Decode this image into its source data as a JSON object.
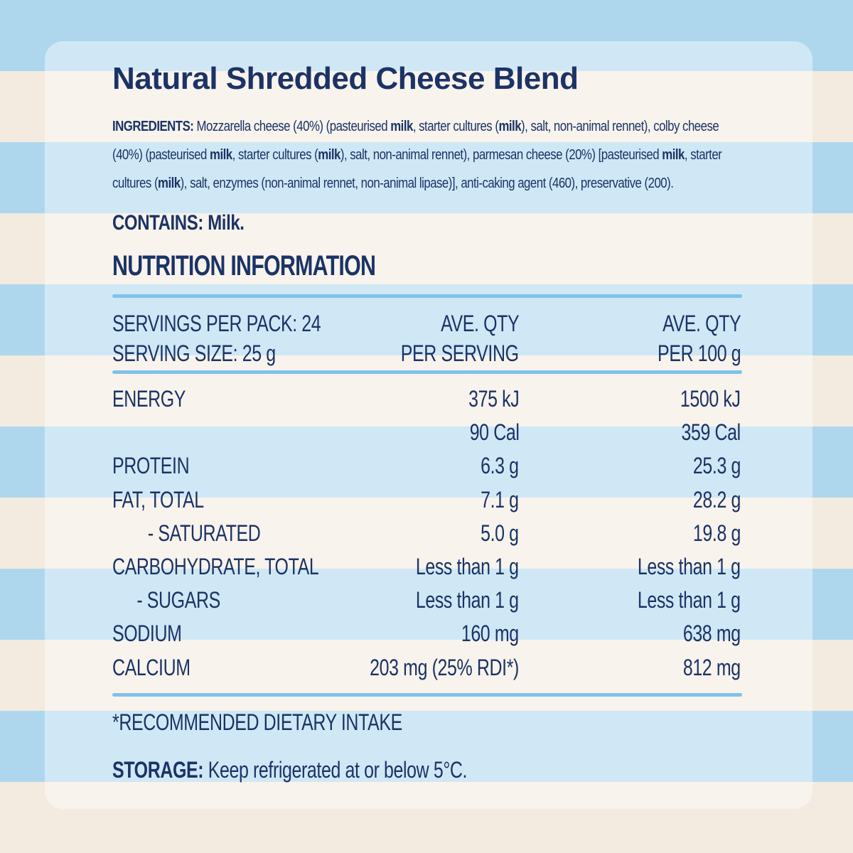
{
  "product": {
    "title": "Natural Shredded Cheese Blend"
  },
  "ingredients": {
    "label": "INGREDIENTS:",
    "segments": [
      {
        "text": " Mozzarella cheese (40%) (pasteurised ",
        "bold": false
      },
      {
        "text": "milk",
        "bold": true
      },
      {
        "text": ", starter cultures (",
        "bold": false
      },
      {
        "text": "milk",
        "bold": true
      },
      {
        "text": "), salt, non-animal rennet), colby cheese (40%) (pasteurised ",
        "bold": false
      },
      {
        "text": "milk",
        "bold": true
      },
      {
        "text": ", starter cultures (",
        "bold": false
      },
      {
        "text": "milk",
        "bold": true
      },
      {
        "text": "), salt, non-animal rennet), parmesan cheese (20%) [pasteurised ",
        "bold": false
      },
      {
        "text": "milk",
        "bold": true
      },
      {
        "text": ", starter cultures (",
        "bold": false
      },
      {
        "text": "milk",
        "bold": true
      },
      {
        "text": "), salt, enzymes (non-animal rennet, non-animal lipase)], anti-caking agent (460), preservative (200).",
        "bold": false
      }
    ]
  },
  "contains": "CONTAINS: Milk.",
  "nutrition": {
    "heading": "NUTRITION INFORMATION",
    "servings_per_pack": "SERVINGS PER PACK: 24",
    "serving_size": "SERVING SIZE: 25 g",
    "col_serving_line1": "AVE. QTY",
    "col_serving_line2": "PER SERVING",
    "col_100g_line1": "AVE. QTY",
    "col_100g_line2": "PER 100 g",
    "rows": [
      {
        "label": "ENERGY",
        "per_serving": "375 kJ",
        "per_100g": "1500 kJ",
        "indent": false
      },
      {
        "label": "",
        "per_serving": "90 Cal",
        "per_100g": "359 Cal",
        "indent": false
      },
      {
        "label": "PROTEIN",
        "per_serving": "6.3 g",
        "per_100g": "25.3 g",
        "indent": false
      },
      {
        "label": "FAT, TOTAL",
        "per_serving": "7.1 g",
        "per_100g": "28.2 g",
        "indent": false
      },
      {
        "label": "- SATURATED",
        "per_serving": "5.0 g",
        "per_100g": "19.8 g",
        "indent": true
      },
      {
        "label": "CARBOHYDRATE, TOTAL",
        "per_serving": "Less than 1 g",
        "per_100g": "Less than 1 g",
        "indent": false
      },
      {
        "label": "- SUGARS",
        "per_serving": "Less than 1 g",
        "per_100g": "Less than 1 g",
        "indent": true
      },
      {
        "label": "SODIUM",
        "per_serving": "160 mg",
        "per_100g": "638 mg",
        "indent": false
      },
      {
        "label": "CALCIUM",
        "per_serving": "203 mg (25% RDI*)",
        "per_100g": "812 mg",
        "indent": false
      }
    ],
    "footnote": "*RECOMMENDED DIETARY INTAKE"
  },
  "storage": {
    "label": "STORAGE:",
    "text": " Keep refrigerated at or below 5°C."
  },
  "colors": {
    "text": "#1b3366",
    "rule": "#7fc2ea",
    "stripe_blue": "#aed7ee",
    "stripe_cream": "#f3ebdf"
  }
}
